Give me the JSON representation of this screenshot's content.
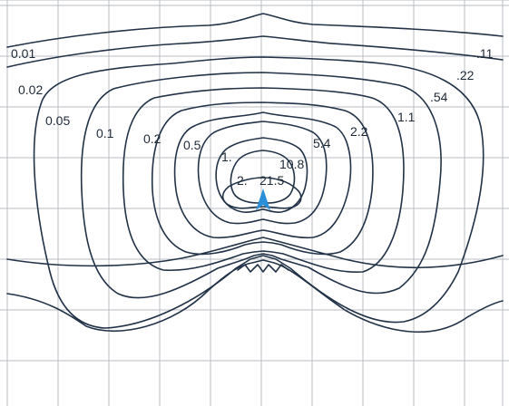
{
  "diagram": {
    "grid": true,
    "marker": {
      "name": "light-source-marker",
      "color": "#2a8fd6"
    },
    "line_color": "#223247",
    "contour_labels": [
      "0.01",
      "0.02",
      "0.05",
      "0.1",
      "0.2",
      "0.5",
      "1.",
      "2.",
      "21.5",
      "10.8",
      "5.4",
      "2.2",
      "1.1",
      ".54",
      ".22",
      ".11"
    ]
  }
}
